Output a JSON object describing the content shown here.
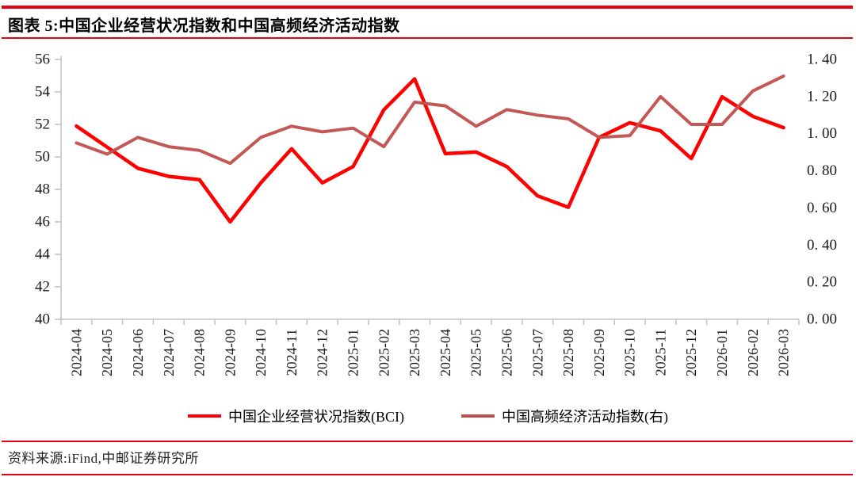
{
  "report": {
    "title": "图表 5:中国企业经营状况指数和中国高频经济活动指数",
    "source": "资料来源:iFind,中邮证券研究所",
    "accent_color": "#e60012"
  },
  "chart_data": {
    "type": "line",
    "title": "图表 5:中国企业经营状况指数和中国高频经济活动指数",
    "grid": false,
    "legend_position": "bottom",
    "categories": [
      "2024-04",
      "2024-05",
      "2024-06",
      "2024-07",
      "2024-08",
      "2024-09",
      "2024-10",
      "2024-11",
      "2024-12",
      "2025-01",
      "2025-02",
      "2025-03",
      "2025-04",
      "2025-05",
      "2025-06",
      "2025-07",
      "2025-08",
      "2025-09",
      "2025-10",
      "2025-11",
      "2025-12",
      "2026-01",
      "2026-02",
      "2026-03"
    ],
    "series": [
      {
        "name": "中国企业经营状况指数(BCI)",
        "axis": "left",
        "color": "#ff0000",
        "values": [
          51.9,
          50.6,
          49.3,
          48.8,
          48.6,
          46.0,
          48.4,
          50.5,
          48.4,
          49.4,
          52.9,
          54.8,
          50.2,
          50.3,
          49.4,
          47.6,
          46.9,
          51.2,
          52.1,
          51.6,
          49.9,
          53.7,
          52.5,
          51.8
        ]
      },
      {
        "name": "中国高频经济活动指数(右)",
        "axis": "right",
        "color": "#c0504d",
        "values": [
          0.95,
          0.89,
          0.98,
          0.93,
          0.91,
          0.84,
          0.98,
          1.04,
          1.01,
          1.03,
          0.93,
          1.17,
          1.15,
          1.04,
          1.13,
          1.1,
          1.08,
          0.98,
          0.99,
          1.2,
          1.05,
          1.05,
          1.23,
          1.31
        ]
      }
    ],
    "y_left": {
      "min": 40,
      "max": 56,
      "tick_labels": [
        "56",
        "54",
        "52",
        "50",
        "48",
        "46",
        "44",
        "42",
        "40"
      ]
    },
    "y_right": {
      "min": 0,
      "max": 1.4,
      "tick_labels": [
        "1. 40",
        "1. 20",
        "1. 00",
        "0. 80",
        "0. 60",
        "0. 40",
        "0. 20",
        "0. 00"
      ]
    },
    "axis_color": "#c0c0c0"
  }
}
